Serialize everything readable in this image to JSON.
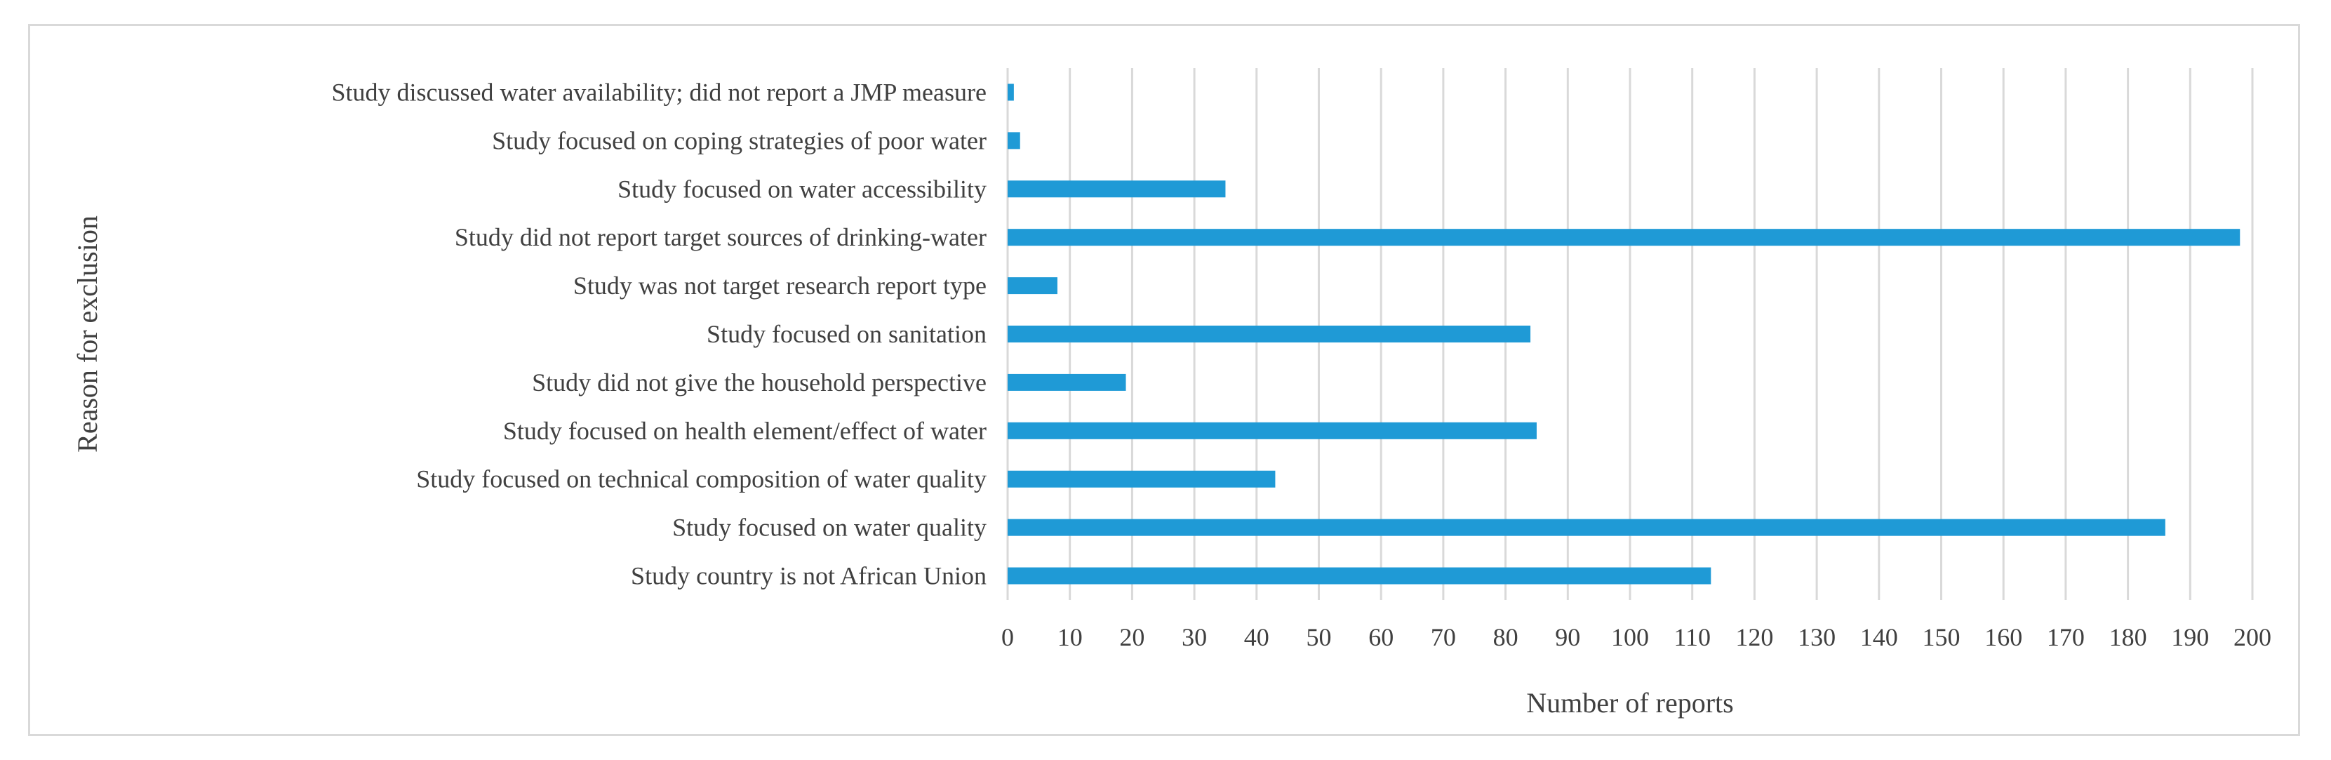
{
  "chart_data": {
    "type": "bar",
    "orientation": "horizontal",
    "title": "",
    "xlabel": "Number of reports",
    "ylabel": "Reason for exclusion",
    "xlim": [
      0,
      200
    ],
    "x_ticks": [
      0,
      10,
      20,
      30,
      40,
      50,
      60,
      70,
      80,
      90,
      100,
      110,
      120,
      130,
      140,
      150,
      160,
      170,
      180,
      190,
      200
    ],
    "grid": "vertical",
    "legend": "none",
    "bar_color": "#1f9ad6",
    "categories": [
      "Study discussed water availability; did not report a JMP measure",
      "Study focused on coping strategies of poor water",
      "Study focused on water accessibility",
      "Study did not report target sources of drinking-water",
      "Study was not target research report type",
      "Study focused on sanitation",
      "Study did not give the household perspective",
      "Study focused on health element/effect of water",
      "Study focused on technical composition of water quality",
      "Study focused on water quality",
      "Study country is not African Union"
    ],
    "values": [
      1,
      2,
      35,
      198,
      8,
      84,
      19,
      85,
      43,
      186,
      113
    ]
  }
}
